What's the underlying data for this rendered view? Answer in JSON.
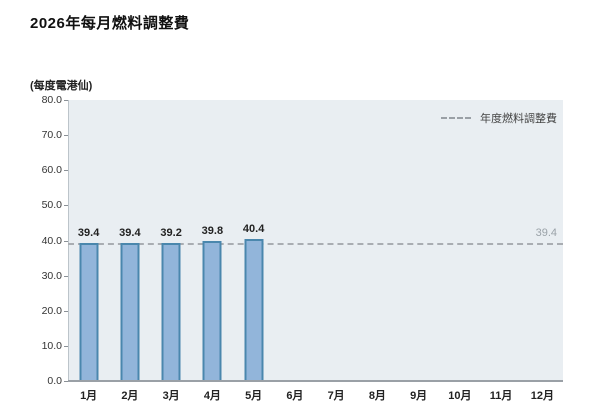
{
  "page": {
    "title": "2026年每月燃料調整費",
    "unit_label": "(每度電港仙)"
  },
  "legend": {
    "annual_label": "年度燃料調整費"
  },
  "chart_data": {
    "type": "bar",
    "title": "2026年每月燃料調整費",
    "ylabel": "(每度電港仙)",
    "categories": [
      "1月",
      "2月",
      "3月",
      "4月",
      "5月",
      "6月",
      "7月",
      "8月",
      "9月",
      "10月",
      "11月",
      "12月"
    ],
    "values": [
      39.4,
      39.4,
      39.2,
      39.8,
      40.4,
      null,
      null,
      null,
      null,
      null,
      null,
      null
    ],
    "bar_labels": [
      "39.4",
      "39.4",
      "39.2",
      "39.8",
      "40.4",
      "",
      "",
      "",
      "",
      "",
      "",
      ""
    ],
    "annual_line": {
      "legend_label": "年度燃料調整費",
      "value": 39.4,
      "value_display": "39.4"
    },
    "ylim": [
      0,
      80
    ],
    "ytick_step": 10,
    "yticks": [
      "0.0",
      "10.0",
      "20.0",
      "30.0",
      "40.0",
      "50.0",
      "60.0",
      "70.0",
      "80.0"
    ],
    "grid": false,
    "legend_position": "top-right",
    "colors": {
      "bar_fill": "#92b5da",
      "bar_border": "#4a87ad",
      "plot_bg": "#e9eef2",
      "annual_line": "#a9adb2",
      "annual_value_text": "#9aa2a8"
    }
  }
}
